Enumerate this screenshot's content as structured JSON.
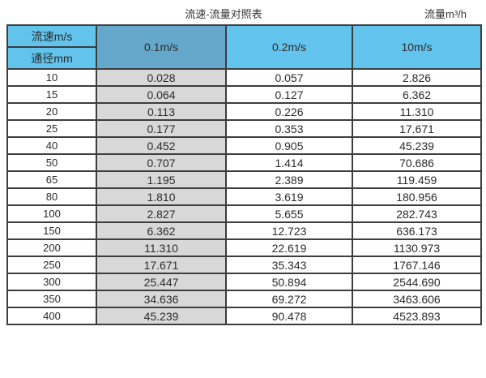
{
  "page": {
    "title": "流速-流量对照表",
    "unit_label": "流量m³/h"
  },
  "table": {
    "header": {
      "corner_top": "流速m/s",
      "corner_bottom": "通径mm",
      "velocity_columns": [
        "0.1m/s",
        "0.2m/s",
        "10m/s"
      ]
    },
    "rows": [
      {
        "diameter": "10",
        "values": [
          "0.028",
          "0.057",
          "2.826"
        ]
      },
      {
        "diameter": "15",
        "values": [
          "0.064",
          "0.127",
          "6.362"
        ]
      },
      {
        "diameter": "20",
        "values": [
          "0.113",
          "0.226",
          "11.310"
        ]
      },
      {
        "diameter": "25",
        "values": [
          "0.177",
          "0.353",
          "17.671"
        ]
      },
      {
        "diameter": "40",
        "values": [
          "0.452",
          "0.905",
          "45.239"
        ]
      },
      {
        "diameter": "50",
        "values": [
          "0.707",
          "1.414",
          "70.686"
        ]
      },
      {
        "diameter": "65",
        "values": [
          "1.195",
          "2.389",
          "119.459"
        ]
      },
      {
        "diameter": "80",
        "values": [
          "1.810",
          "3.619",
          "180.956"
        ]
      },
      {
        "diameter": "100",
        "values": [
          "2.827",
          "5.655",
          "282.743"
        ]
      },
      {
        "diameter": "150",
        "values": [
          "6.362",
          "12.723",
          "636.173"
        ]
      },
      {
        "diameter": "200",
        "values": [
          "11.310",
          "22.619",
          "1130.973"
        ]
      },
      {
        "diameter": "250",
        "values": [
          "17.671",
          "35.343",
          "1767.146"
        ]
      },
      {
        "diameter": "300",
        "values": [
          "25.447",
          "50.894",
          "2544.690"
        ]
      },
      {
        "diameter": "350",
        "values": [
          "34.636",
          "69.272",
          "3463.606"
        ]
      },
      {
        "diameter": "400",
        "values": [
          "45.239",
          "90.478",
          "4523.893"
        ]
      }
    ]
  },
  "colors": {
    "header_light_blue": "#62C3EC",
    "header_steel_blue": "#65A8CB",
    "highlight_column_grey": "#D8D8D8",
    "border": "#3D3D3D"
  }
}
